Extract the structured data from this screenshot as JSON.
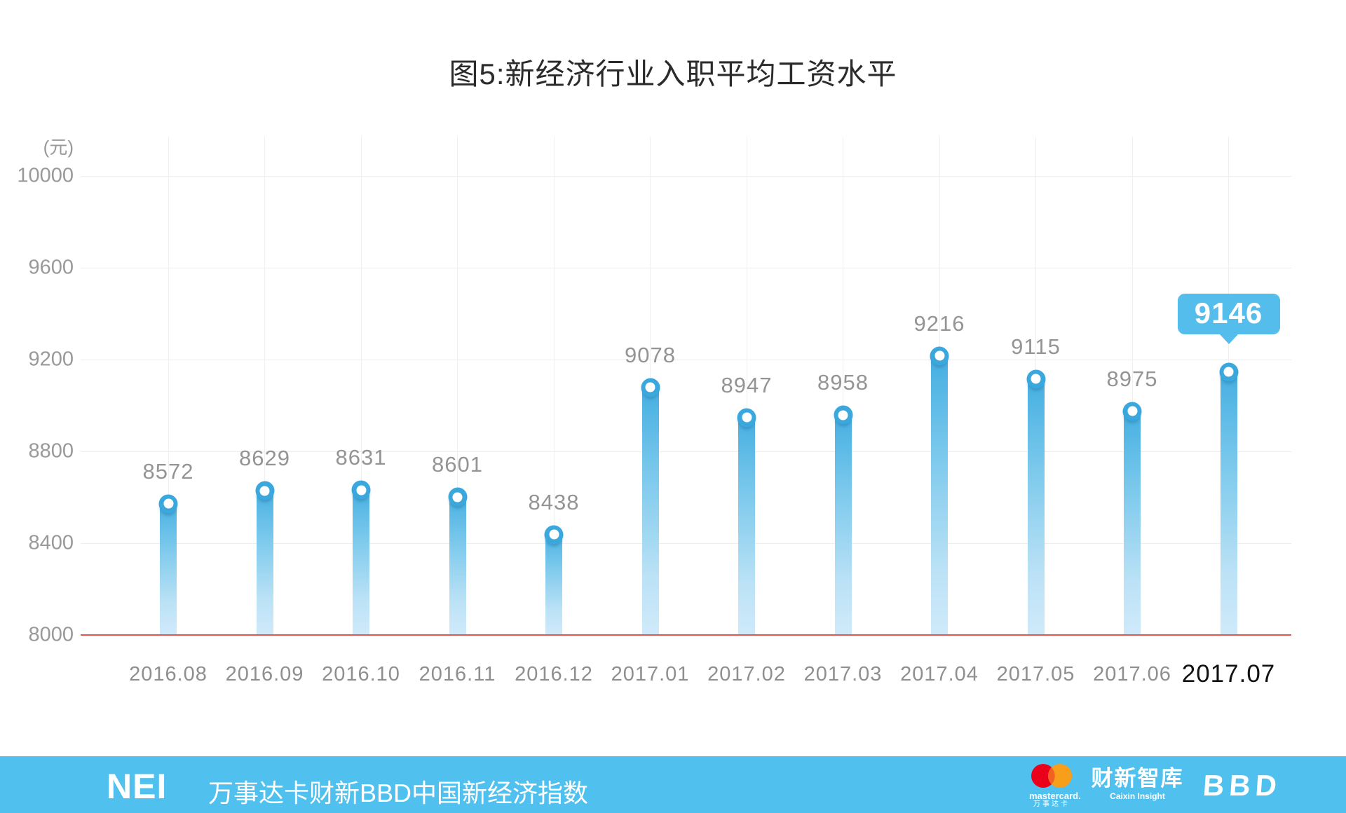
{
  "title": "图5:新经济行业入职平均工资水平",
  "unit_label": "(元)",
  "chart_data": {
    "type": "bar",
    "title": "图5:新经济行业入职平均工资水平",
    "ylabel": "(元)",
    "categories": [
      "2016.08",
      "2016.09",
      "2016.10",
      "2016.11",
      "2016.12",
      "2017.01",
      "2017.02",
      "2017.03",
      "2017.04",
      "2017.05",
      "2017.06",
      "2017.07"
    ],
    "values": [
      8572,
      8629,
      8631,
      8601,
      8438,
      9078,
      8947,
      8958,
      9216,
      9115,
      8975,
      9146
    ],
    "highlight_index": 11,
    "ylim": [
      8000,
      10000
    ],
    "yticks": [
      8000,
      8400,
      8800,
      9200,
      9600,
      10000
    ],
    "grid": true,
    "legend": "none",
    "colors": {
      "bar_top": "#3face0",
      "bar_bottom": "#cfeafa",
      "marker_ring": "#3aa7dd",
      "baseline_red": "#e0584e",
      "tooltip_bg": "#55bdeb",
      "label_gray": "#949494",
      "highlight_text": "#111111"
    }
  },
  "footer": {
    "nei": "NEI",
    "subtitle": "万事达卡财新BBD中国新经济指数",
    "bg": "#50c1ee",
    "mastercard_label": "mastercard.",
    "mastercard_cn": "万事达卡",
    "caixin_cn": "财新智库",
    "caixin_en": "Caixin Insight",
    "bbd": "BBD"
  }
}
